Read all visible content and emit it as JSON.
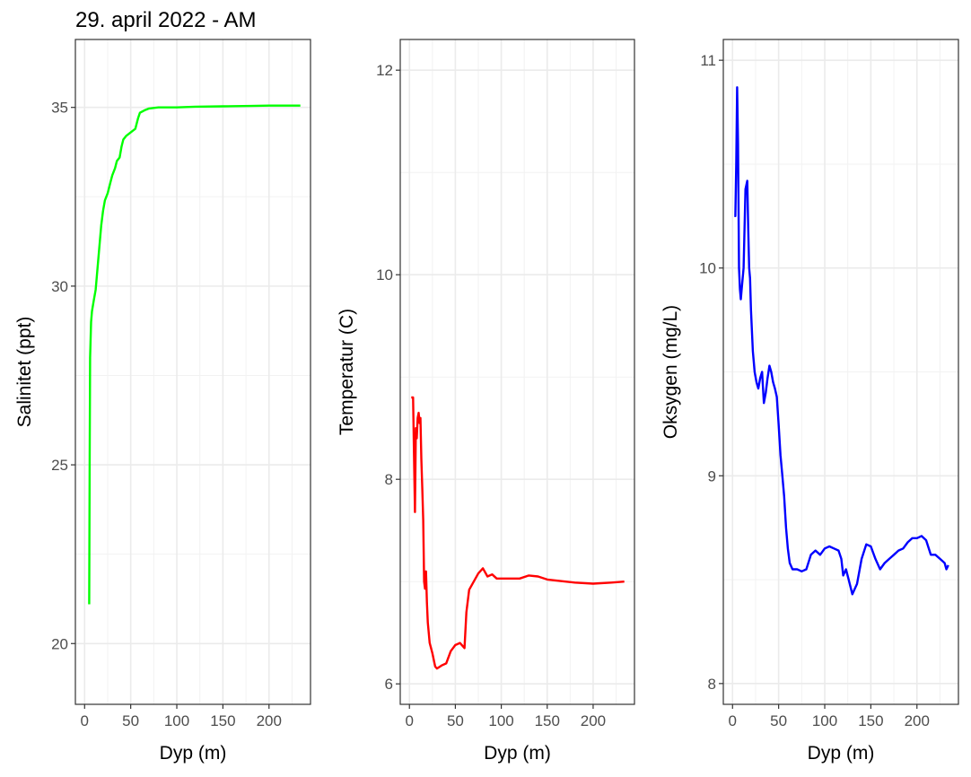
{
  "title": "29. april 2022 - AM",
  "chart_data": [
    {
      "type": "line",
      "xlabel": "Dyp (m)",
      "ylabel": "Salinitet (ppt)",
      "xlim": [
        -10,
        245
      ],
      "ylim": [
        18.3,
        36.9
      ],
      "xticks": [
        0,
        50,
        100,
        150,
        200
      ],
      "yticks": [
        20,
        25,
        30,
        35
      ],
      "grid": true,
      "color": "#00ff00",
      "x": [
        5,
        5.5,
        6,
        7,
        8,
        10,
        12,
        15,
        18,
        20,
        22,
        25,
        28,
        30,
        33,
        35,
        38,
        40,
        42,
        45,
        50,
        55,
        58,
        60,
        65,
        70,
        80,
        100,
        120,
        150,
        180,
        200,
        234
      ],
      "y": [
        21.1,
        25,
        28,
        29,
        29.3,
        29.6,
        29.9,
        30.8,
        31.7,
        32.1,
        32.4,
        32.6,
        32.9,
        33.1,
        33.3,
        33.5,
        33.6,
        33.9,
        34.1,
        34.2,
        34.3,
        34.4,
        34.7,
        34.85,
        34.92,
        34.97,
        35.0,
        35.0,
        35.02,
        35.03,
        35.04,
        35.05,
        35.05
      ]
    },
    {
      "type": "line",
      "xlabel": "Dyp (m)",
      "ylabel": "Temperatur (C)",
      "xlim": [
        -10,
        245
      ],
      "ylim": [
        5.8,
        12.3
      ],
      "xticks": [
        0,
        50,
        100,
        150,
        200
      ],
      "yticks": [
        6,
        8,
        10,
        12
      ],
      "grid": true,
      "color": "#ff0000",
      "x": [
        2,
        4,
        5,
        6,
        7,
        8,
        9,
        10,
        11,
        12,
        13,
        14,
        15,
        16,
        17,
        18,
        19,
        20,
        22,
        25,
        28,
        30,
        35,
        40,
        45,
        50,
        55,
        60,
        62,
        65,
        70,
        75,
        80,
        85,
        90,
        95,
        100,
        110,
        120,
        130,
        140,
        150,
        160,
        170,
        180,
        200,
        220,
        234
      ],
      "y": [
        8.8,
        8.8,
        8.2,
        7.68,
        8.5,
        8.4,
        8.6,
        8.65,
        8.55,
        8.6,
        8.2,
        7.9,
        7.6,
        7.0,
        6.93,
        7.1,
        6.8,
        6.6,
        6.4,
        6.3,
        6.17,
        6.15,
        6.18,
        6.2,
        6.32,
        6.38,
        6.4,
        6.35,
        6.7,
        6.92,
        7.0,
        7.08,
        7.13,
        7.05,
        7.07,
        7.03,
        7.03,
        7.03,
        7.03,
        7.06,
        7.05,
        7.02,
        7.01,
        7.0,
        6.99,
        6.98,
        6.99,
        7.0
      ]
    },
    {
      "type": "line",
      "xlabel": "Dyp (m)",
      "ylabel": "Oksygen (mg/L)",
      "xlim": [
        -10,
        245
      ],
      "ylim": [
        7.9,
        11.1
      ],
      "xticks": [
        0,
        50,
        100,
        150,
        200
      ],
      "yticks": [
        8,
        9,
        10,
        11
      ],
      "grid": true,
      "color": "#0000ff",
      "x": [
        2,
        3,
        4,
        5,
        6,
        7,
        8,
        9,
        10,
        12,
        14,
        16,
        17,
        18,
        19,
        20,
        22,
        24,
        26,
        28,
        30,
        32,
        34,
        36,
        38,
        40,
        42,
        44,
        46,
        48,
        50,
        52,
        54,
        56,
        58,
        60,
        62,
        65,
        70,
        75,
        80,
        85,
        90,
        95,
        100,
        105,
        110,
        115,
        118,
        120,
        123,
        126,
        130,
        135,
        140,
        145,
        150,
        155,
        160,
        165,
        170,
        175,
        180,
        185,
        190,
        195,
        200,
        205,
        210,
        215,
        220,
        225,
        230,
        232,
        234
      ],
      "y": [
        10.25,
        10.25,
        10.5,
        10.87,
        10.6,
        10.0,
        9.9,
        9.85,
        9.9,
        10.0,
        10.38,
        10.42,
        10.2,
        10.0,
        9.95,
        9.8,
        9.6,
        9.5,
        9.45,
        9.42,
        9.47,
        9.5,
        9.35,
        9.4,
        9.47,
        9.53,
        9.5,
        9.45,
        9.42,
        9.38,
        9.25,
        9.1,
        9.0,
        8.9,
        8.75,
        8.65,
        8.58,
        8.55,
        8.55,
        8.54,
        8.55,
        8.62,
        8.64,
        8.62,
        8.65,
        8.66,
        8.65,
        8.64,
        8.6,
        8.52,
        8.55,
        8.5,
        8.43,
        8.48,
        8.6,
        8.67,
        8.66,
        8.6,
        8.55,
        8.58,
        8.6,
        8.62,
        8.64,
        8.65,
        8.68,
        8.7,
        8.7,
        8.71,
        8.69,
        8.62,
        8.62,
        8.6,
        8.58,
        8.55,
        8.57
      ]
    }
  ]
}
